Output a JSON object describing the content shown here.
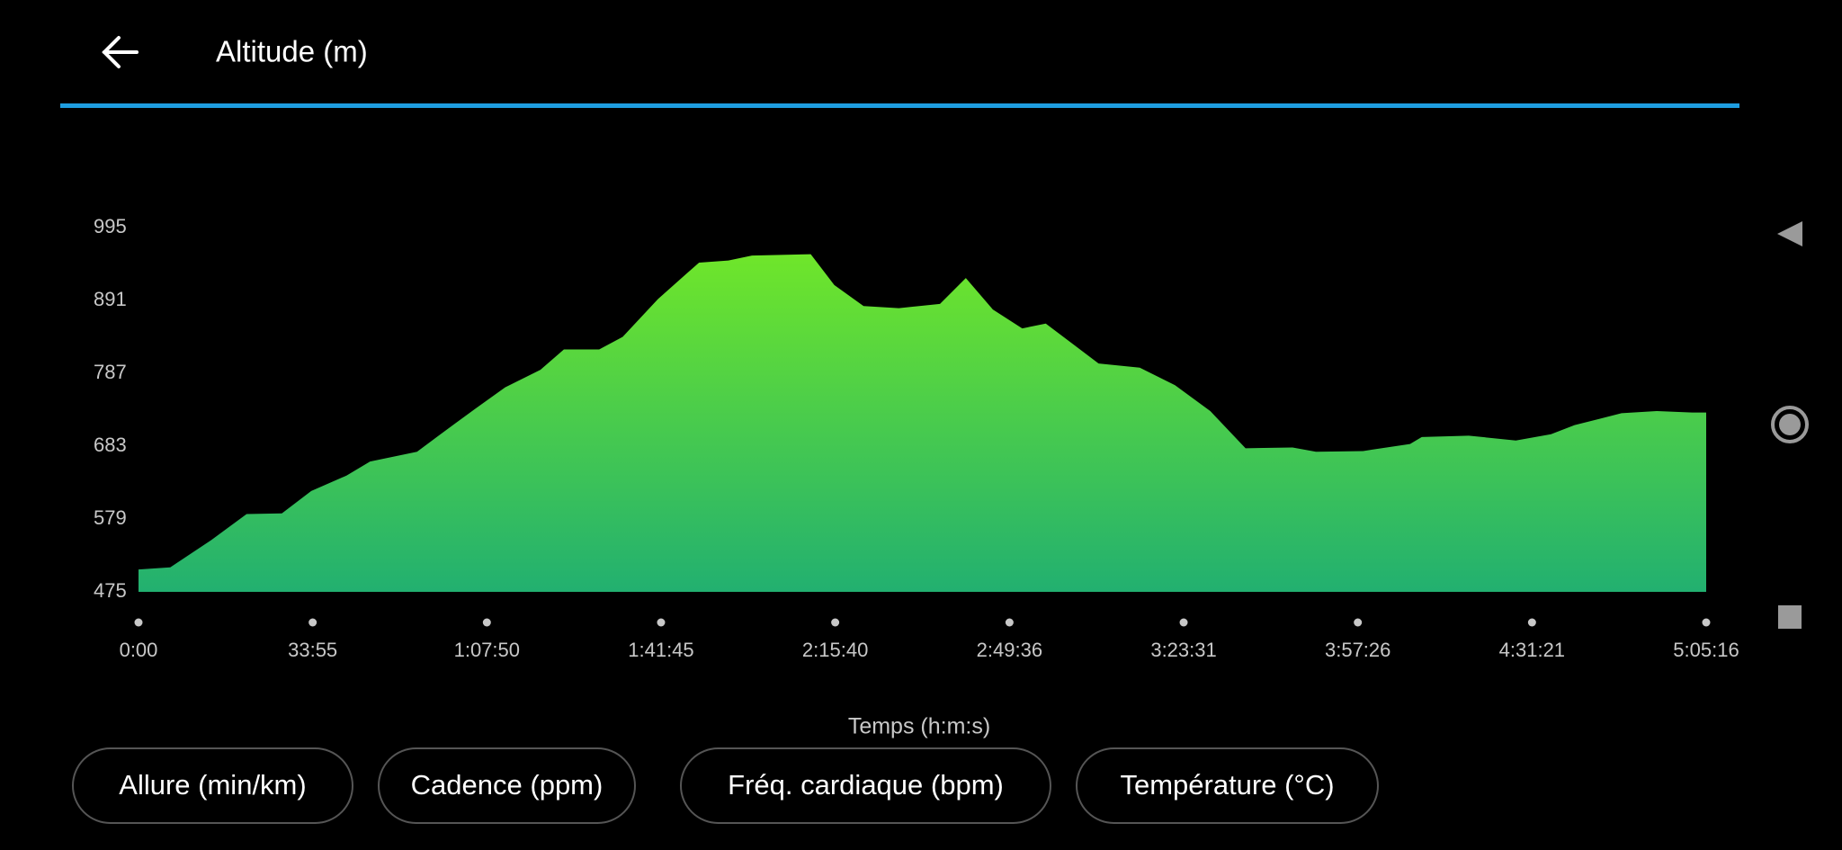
{
  "chart_data": {
    "type": "area",
    "title": "Altitude (m)",
    "xlabel": "Temps (h:m:s)",
    "x": [
      0,
      371,
      851,
      1263,
      1675,
      2018,
      2430,
      2705,
      3254,
      3529,
      3941,
      4284,
      4696,
      4970,
      5382,
      5657,
      6069,
      6549,
      6892,
      7167,
      7854,
      8129,
      8471,
      8883,
      9364,
      9666,
      9982,
      10325,
      10600,
      11217,
      11698,
      12110,
      12522,
      12934,
      13483,
      13757,
      14307,
      14856,
      14993,
      15542,
      16092,
      16503,
      16778,
      17327,
      17739,
      18151,
      18316
    ],
    "y": [
      507,
      510,
      549,
      586,
      587,
      619,
      641,
      661,
      675,
      700,
      737,
      767,
      792,
      821,
      821,
      839,
      893,
      945,
      948,
      955,
      957,
      913,
      883,
      880,
      886,
      923,
      878,
      851,
      858,
      801,
      795,
      770,
      733,
      680,
      681,
      675,
      676,
      686,
      696,
      698,
      691,
      700,
      713,
      730,
      733,
      731,
      731
    ],
    "xlim": [
      0,
      18316
    ],
    "xticks": [
      {
        "value": 0,
        "label": "0:00"
      },
      {
        "value": 2035,
        "label": "33:55"
      },
      {
        "value": 4070,
        "label": "1:07:50"
      },
      {
        "value": 6105,
        "label": "1:41:45"
      },
      {
        "value": 8140,
        "label": "2:15:40"
      },
      {
        "value": 10176,
        "label": "2:49:36"
      },
      {
        "value": 12211,
        "label": "3:23:31"
      },
      {
        "value": 14246,
        "label": "3:57:26"
      },
      {
        "value": 16281,
        "label": "4:31:21"
      },
      {
        "value": 18316,
        "label": "5:05:16"
      }
    ],
    "ylim": [
      475,
      995
    ],
    "yticks": [
      475,
      579,
      683,
      787,
      891,
      995
    ],
    "color": "#22b070",
    "grid": false
  },
  "buttons": [
    "Allure (min/km)",
    "Cadence (ppm)",
    "Fréq. cardiaque (bpm)",
    "Température (°C)"
  ]
}
